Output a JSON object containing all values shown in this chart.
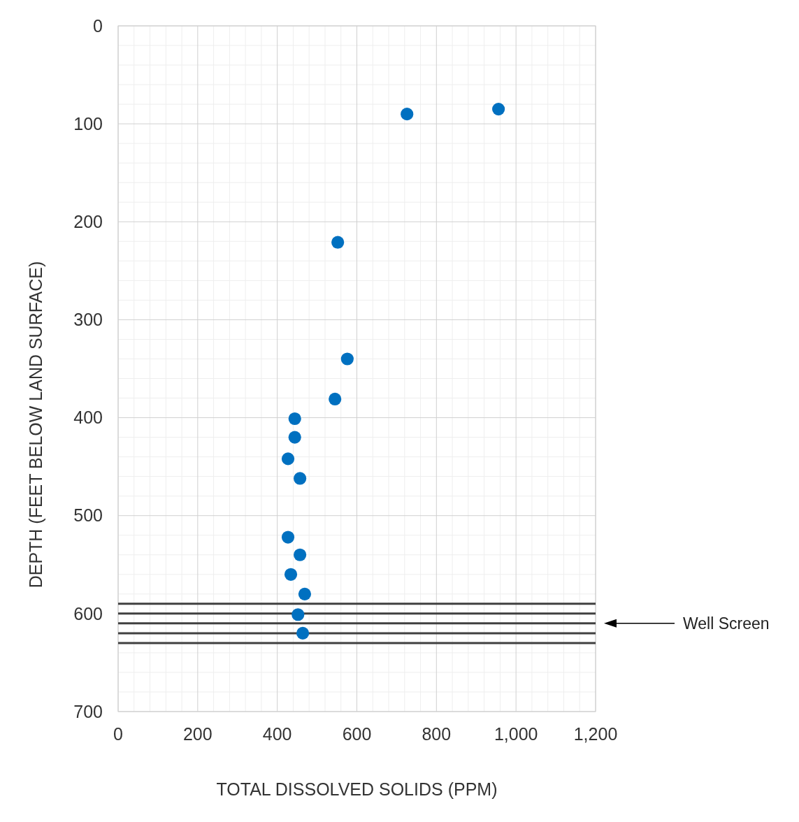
{
  "chart_data": {
    "type": "scatter",
    "xlabel": "TOTAL DISSOLVED SOLIDS (PPM)",
    "ylabel": "DEPTH (FEET BELOW LAND SURFACE)",
    "xlim": [
      0,
      1200
    ],
    "xticks": [
      0,
      200,
      400,
      600,
      800,
      {
        "value": 1000,
        "label": "1,000"
      },
      {
        "value": 1200,
        "label": "1,200"
      }
    ],
    "ylim": [
      700,
      0
    ],
    "yticks": [
      0,
      100,
      200,
      300,
      400,
      500,
      600,
      700
    ],
    "grid": true,
    "marker": "circle",
    "series": [
      {
        "color": "#0070c0",
        "x": [
          726,
          956,
          552,
          576,
          545,
          444,
          444,
          427,
          457,
          427,
          457,
          434,
          469,
          452,
          464
        ],
        "values": [
          90,
          85,
          221,
          340,
          381,
          401,
          420,
          442,
          462,
          522,
          540,
          560,
          580,
          601,
          620
        ]
      }
    ],
    "ref_lines": [
      {
        "axis": "y",
        "value": 590,
        "label": null,
        "color": "#404040"
      },
      {
        "axis": "y",
        "value": 600,
        "label": null,
        "color": "#404040"
      },
      {
        "axis": "y",
        "value": 610,
        "label": "Well Screen",
        "color": "#404040"
      },
      {
        "axis": "y",
        "value": 620,
        "label": null,
        "color": "#404040"
      },
      {
        "axis": "y",
        "value": 630,
        "label": null,
        "color": "#404040"
      }
    ]
  }
}
